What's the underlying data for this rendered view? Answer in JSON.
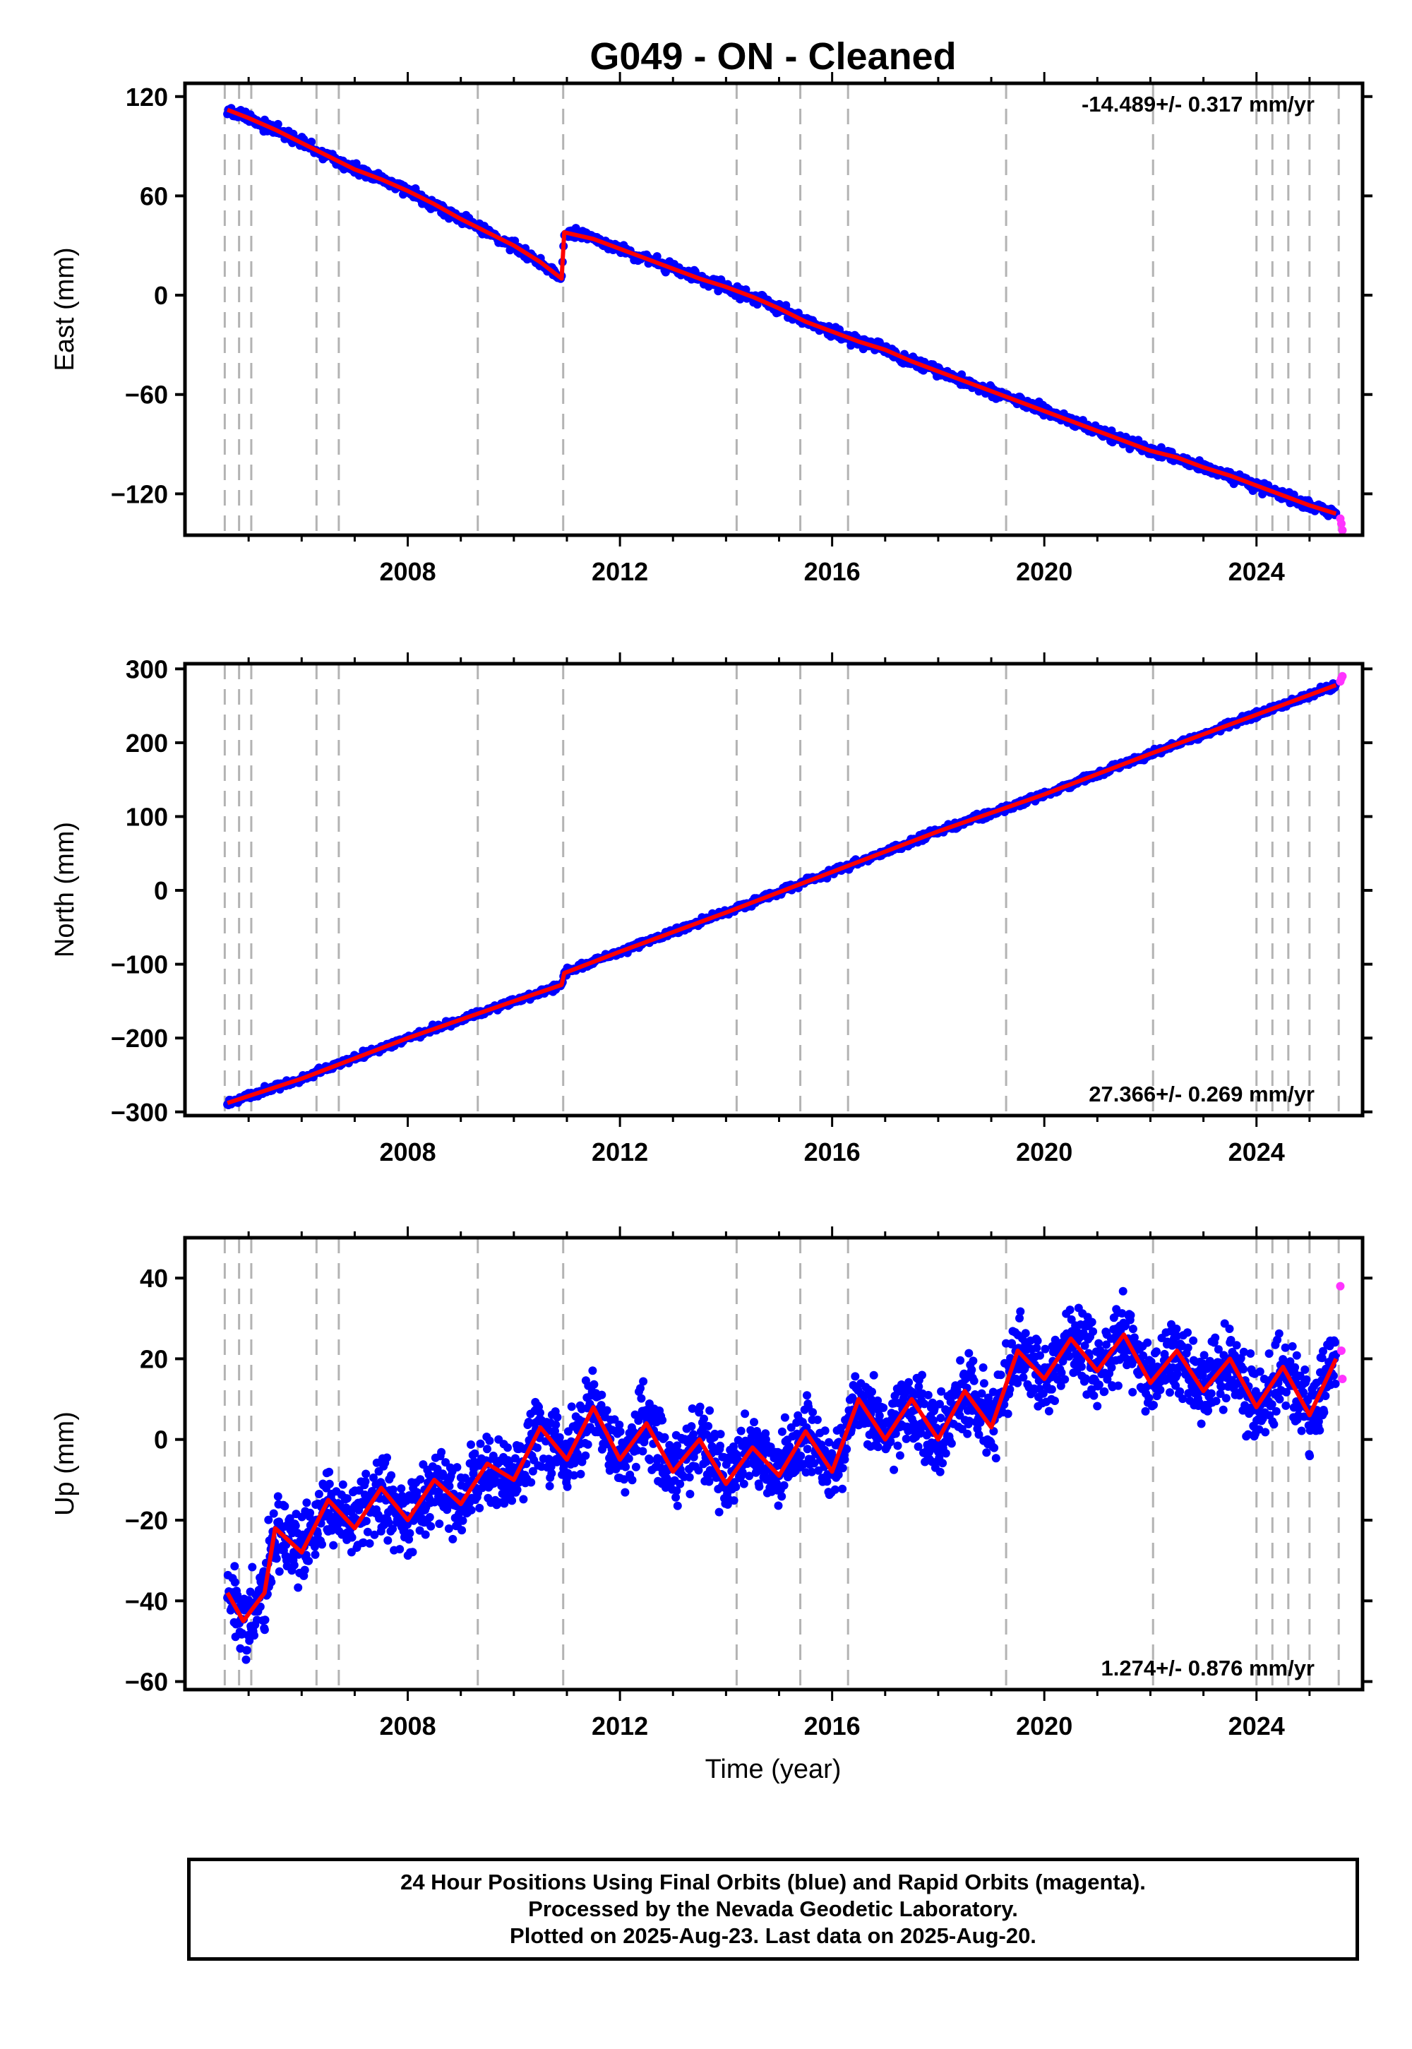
{
  "title": "G049  - ON - Cleaned",
  "colors": {
    "final_orbits": "#0000ff",
    "rapid_orbits": "#ff33ff",
    "model": "#ff0000",
    "event_lines": "#b3b3b3",
    "frame": "#000000"
  },
  "x_axis": {
    "label": "Time (year)",
    "range": [
      2003.8,
      2026.0
    ],
    "ticks": [
      "2008",
      "2012",
      "2016",
      "2020",
      "2024"
    ]
  },
  "event_lines": [
    2004.55,
    2004.82,
    2005.05,
    2006.28,
    2006.7,
    2009.32,
    2010.93,
    2014.2,
    2015.4,
    2016.3,
    2019.28,
    2022.05,
    2024.0,
    2024.3,
    2024.6,
    2025.0,
    2025.55
  ],
  "chart_data": [
    {
      "type": "scatter",
      "panel": "east",
      "ylabel": "East (mm)",
      "ylim": [
        -145,
        128
      ],
      "yticks": [
        "120",
        "60",
        "0",
        "−60",
        "−120"
      ],
      "rate_text": "-14.489+/- 0.317 mm/yr",
      "rate_position": "top-right",
      "series": [
        {
          "name": "Final Orbits (blue)",
          "x": [
            2004.6,
            2005,
            2005.5,
            2006,
            2006.5,
            2007,
            2007.5,
            2008,
            2008.5,
            2009,
            2009.5,
            2010,
            2010.5,
            2010.9,
            2010.95,
            2011.5,
            2012,
            2012.5,
            2013,
            2013.5,
            2014,
            2014.5,
            2015,
            2015.5,
            2016,
            2016.5,
            2017,
            2017.5,
            2018,
            2018.5,
            2019,
            2019.5,
            2020,
            2020.5,
            2021,
            2021.5,
            2022,
            2022.5,
            2023,
            2023.5,
            2024,
            2024.5,
            2025,
            2025.5
          ],
          "y": [
            112,
            107,
            100,
            92,
            84,
            76,
            70,
            63,
            55,
            46,
            38,
            30,
            20,
            10,
            38,
            34,
            28,
            22,
            16,
            10,
            5,
            -1,
            -8,
            -16,
            -22,
            -28,
            -33,
            -40,
            -46,
            -52,
            -58,
            -64,
            -70,
            -76,
            -82,
            -88,
            -94,
            -98,
            -104,
            -109,
            -115,
            -121,
            -127,
            -132
          ]
        },
        {
          "name": "Rapid Orbits (magenta)",
          "x": [
            2025.58,
            2025.6,
            2025.62
          ],
          "y": [
            -135,
            -138,
            -142
          ]
        },
        {
          "name": "Model",
          "x": [
            2004.6,
            2005,
            2005.5,
            2006,
            2006.5,
            2007,
            2007.5,
            2008,
            2008.5,
            2009,
            2009.5,
            2010,
            2010.5,
            2010.9,
            2010.95,
            2011.5,
            2012,
            2012.5,
            2013,
            2013.5,
            2014,
            2014.5,
            2015,
            2015.5,
            2016,
            2016.5,
            2017,
            2017.5,
            2018,
            2018.5,
            2019,
            2019.5,
            2020,
            2020.5,
            2021,
            2021.5,
            2022,
            2022.5,
            2023,
            2023.5,
            2024,
            2024.5,
            2025,
            2025.5
          ],
          "y": [
            112,
            107,
            100,
            92,
            84,
            76,
            70,
            63,
            55,
            46,
            38,
            30,
            20,
            10,
            38,
            34,
            28,
            22,
            16,
            10,
            5,
            -1,
            -8,
            -16,
            -22,
            -28,
            -33,
            -40,
            -46,
            -52,
            -58,
            -64,
            -70,
            -76,
            -82,
            -88,
            -94,
            -98,
            -104,
            -109,
            -115,
            -121,
            -127,
            -132
          ]
        }
      ]
    },
    {
      "type": "scatter",
      "panel": "north",
      "ylabel": "North (mm)",
      "ylim": [
        -305,
        307
      ],
      "yticks": [
        "300",
        "200",
        "100",
        "0",
        "−100",
        "−200",
        "−300"
      ],
      "rate_text": "27.366+/- 0.269 mm/yr",
      "rate_position": "bottom-right",
      "series": [
        {
          "name": "Final Orbits (blue)",
          "x": [
            2004.6,
            2006,
            2008,
            2010,
            2010.9,
            2010.95,
            2012,
            2014,
            2016,
            2018,
            2020,
            2022,
            2024,
            2025.5
          ],
          "y": [
            -288,
            -255,
            -200,
            -150,
            -128,
            -112,
            -83,
            -30,
            25,
            80,
            130,
            185,
            238,
            278
          ]
        },
        {
          "name": "Rapid Orbits (magenta)",
          "x": [
            2025.58,
            2025.6,
            2025.62
          ],
          "y": [
            283,
            287,
            290
          ]
        },
        {
          "name": "Model",
          "x": [
            2004.6,
            2006,
            2008,
            2010,
            2010.9,
            2010.95,
            2012,
            2014,
            2016,
            2018,
            2020,
            2022,
            2024,
            2025.5
          ],
          "y": [
            -288,
            -255,
            -200,
            -150,
            -128,
            -112,
            -83,
            -30,
            25,
            80,
            130,
            185,
            238,
            278
          ]
        }
      ]
    },
    {
      "type": "scatter",
      "panel": "up",
      "ylabel": "Up (mm)",
      "ylim": [
        -62,
        50
      ],
      "yticks": [
        "40",
        "20",
        "0",
        "−20",
        "−40",
        "−60"
      ],
      "rate_text": "1.274+/- 0.876 mm/yr",
      "rate_position": "bottom-right",
      "series": [
        {
          "name": "Final Orbits (blue)",
          "x": [
            2004.6,
            2004.9,
            2005.3,
            2005.5,
            2006,
            2006.5,
            2007,
            2007.5,
            2008,
            2008.5,
            2009,
            2009.5,
            2010,
            2010.5,
            2011,
            2011.5,
            2012,
            2012.5,
            2013,
            2013.5,
            2014,
            2014.5,
            2015,
            2015.5,
            2016,
            2016.5,
            2017,
            2017.5,
            2018,
            2018.5,
            2019,
            2019.5,
            2020,
            2020.5,
            2021,
            2021.5,
            2022,
            2022.5,
            2023,
            2023.5,
            2024,
            2024.5,
            2025,
            2025.5
          ],
          "y": [
            -38,
            -45,
            -38,
            -22,
            -28,
            -15,
            -22,
            -12,
            -20,
            -10,
            -16,
            -6,
            -10,
            3,
            -5,
            8,
            -5,
            4,
            -8,
            0,
            -11,
            -2,
            -9,
            2,
            -8,
            10,
            0,
            10,
            0,
            12,
            3,
            22,
            15,
            25,
            17,
            26,
            14,
            22,
            12,
            20,
            8,
            18,
            6,
            20
          ]
        },
        {
          "name": "Rapid Orbits (magenta)",
          "x": [
            2025.58,
            2025.6,
            2025.62
          ],
          "y": [
            38,
            22,
            15
          ]
        },
        {
          "name": "Model",
          "x": [
            2004.6,
            2004.9,
            2005.3,
            2005.5,
            2006,
            2006.5,
            2007,
            2007.5,
            2008,
            2008.5,
            2009,
            2009.5,
            2010,
            2010.5,
            2011,
            2011.5,
            2012,
            2012.5,
            2013,
            2013.5,
            2014,
            2014.5,
            2015,
            2015.5,
            2016,
            2016.5,
            2017,
            2017.5,
            2018,
            2018.5,
            2019,
            2019.5,
            2020,
            2020.5,
            2021,
            2021.5,
            2022,
            2022.5,
            2023,
            2023.5,
            2024,
            2024.5,
            2025,
            2025.5
          ],
          "y": [
            -38,
            -45,
            -38,
            -22,
            -28,
            -15,
            -22,
            -12,
            -20,
            -10,
            -16,
            -6,
            -10,
            3,
            -5,
            8,
            -5,
            4,
            -8,
            0,
            -11,
            -2,
            -9,
            2,
            -8,
            10,
            0,
            10,
            0,
            12,
            3,
            22,
            15,
            25,
            17,
            26,
            14,
            22,
            12,
            20,
            8,
            18,
            6,
            20
          ]
        }
      ]
    }
  ],
  "footer": {
    "line1": "24 Hour Positions Using Final Orbits (blue) and Rapid Orbits (magenta).",
    "line2": "Processed by the Nevada Geodetic Laboratory.",
    "line3": "Plotted on 2025-Aug-23. Last data on 2025-Aug-20."
  }
}
